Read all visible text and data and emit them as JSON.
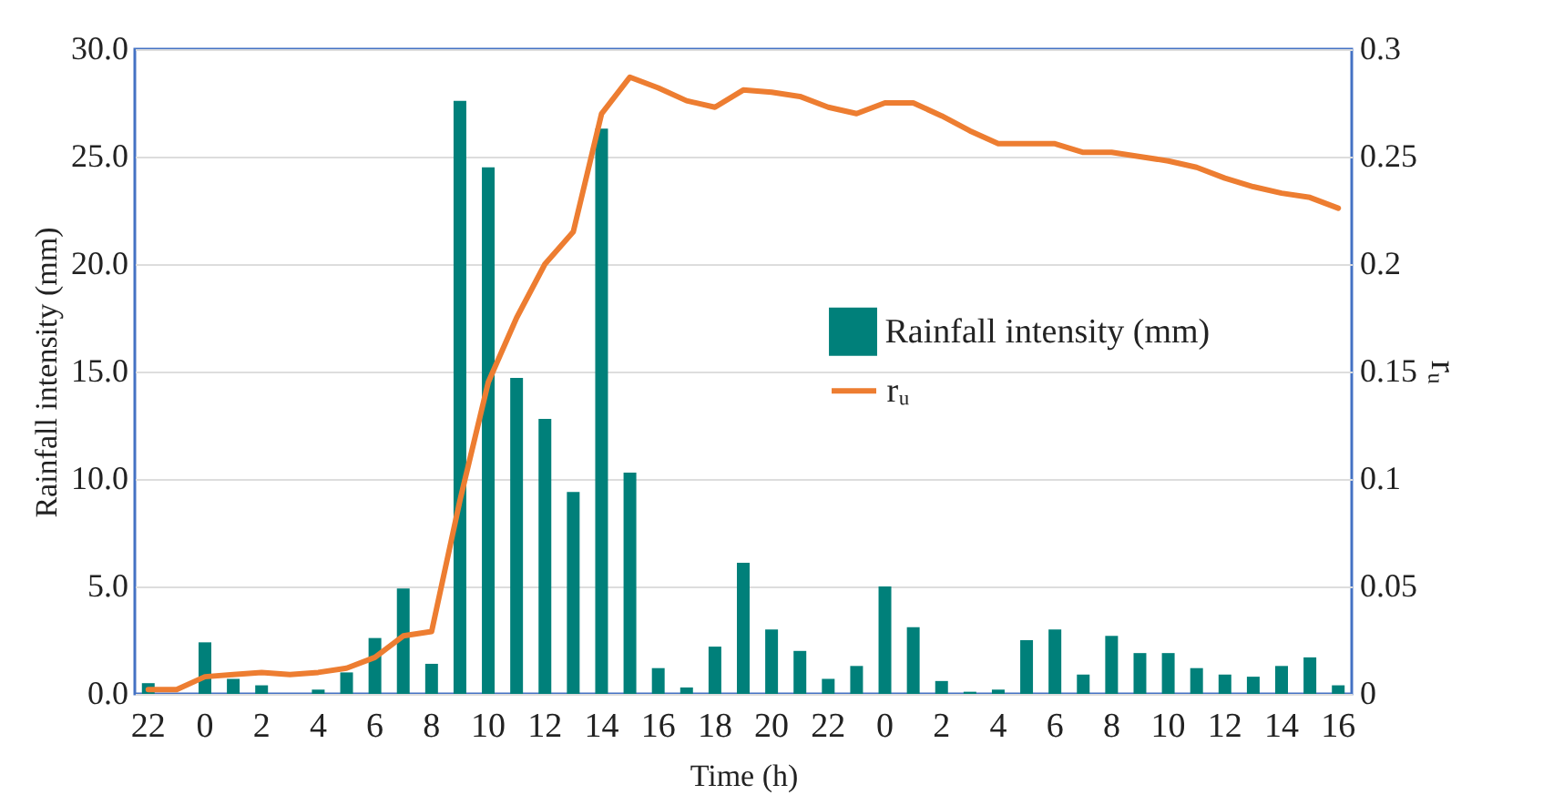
{
  "chart_data": {
    "type": "bar",
    "xlabel": "Time (h)",
    "ylabel": "Rainfall intensity (mm)",
    "y2label": "rᵤ",
    "categories": [
      "22",
      null,
      "0",
      null,
      "2",
      null,
      "4",
      null,
      "6",
      null,
      "8",
      null,
      "10",
      null,
      "12",
      null,
      "14",
      null,
      "16",
      null,
      "18",
      null,
      "20",
      null,
      "22",
      null,
      "0",
      null,
      "2",
      null,
      "4",
      null,
      "6",
      null,
      "8",
      null,
      "10",
      null,
      "12",
      null,
      "14",
      null,
      "16"
    ],
    "series": [
      {
        "name": "Rainfall intensity (mm)",
        "color": "#00807a",
        "values": [
          0.5,
          0,
          2.4,
          0.7,
          0.4,
          0,
          0.2,
          1.0,
          2.6,
          4.9,
          1.4,
          27.6,
          24.5,
          14.7,
          12.8,
          9.4,
          26.3,
          10.3,
          1.2,
          0.3,
          2.2,
          6.1,
          3.0,
          2.0,
          0.7,
          1.3,
          5.0,
          3.1,
          0.6,
          0.1,
          0.2,
          2.5,
          3.0,
          0.9,
          2.7,
          1.9,
          1.9,
          1.2,
          0.9,
          0.8,
          1.3,
          1.7,
          0.4
        ]
      },
      {
        "name": "rᵤ",
        "type": "line",
        "axis": "y2",
        "color": "#ed7d31",
        "values": [
          0.002,
          0.002,
          0.008,
          0.009,
          0.01,
          0.009,
          0.01,
          0.012,
          0.017,
          0.027,
          0.029,
          0.09,
          0.145,
          0.175,
          0.2,
          0.215,
          0.27,
          0.287,
          0.282,
          0.276,
          0.273,
          0.281,
          0.28,
          0.278,
          0.273,
          0.27,
          0.275,
          0.275,
          0.269,
          0.262,
          0.256,
          0.256,
          0.256,
          0.252,
          0.252,
          0.25,
          0.248,
          0.245,
          0.24,
          0.236,
          0.233,
          0.231,
          0.226
        ]
      }
    ],
    "ylim": [
      0,
      30
    ],
    "yticks": [
      {
        "value": 0,
        "label": "0.0"
      },
      {
        "value": 5,
        "label": "5.0"
      },
      {
        "value": 10,
        "label": "10.0"
      },
      {
        "value": 15,
        "label": "15.0"
      },
      {
        "value": 20,
        "label": "20.0"
      },
      {
        "value": 25,
        "label": "25.0"
      },
      {
        "value": 30,
        "label": "30.0"
      }
    ],
    "y2lim": [
      0,
      0.3
    ],
    "y2ticks": [
      0,
      0.05,
      0.1,
      0.15,
      0.2,
      0.25,
      0.3
    ],
    "grid": "y",
    "legend": "right"
  }
}
